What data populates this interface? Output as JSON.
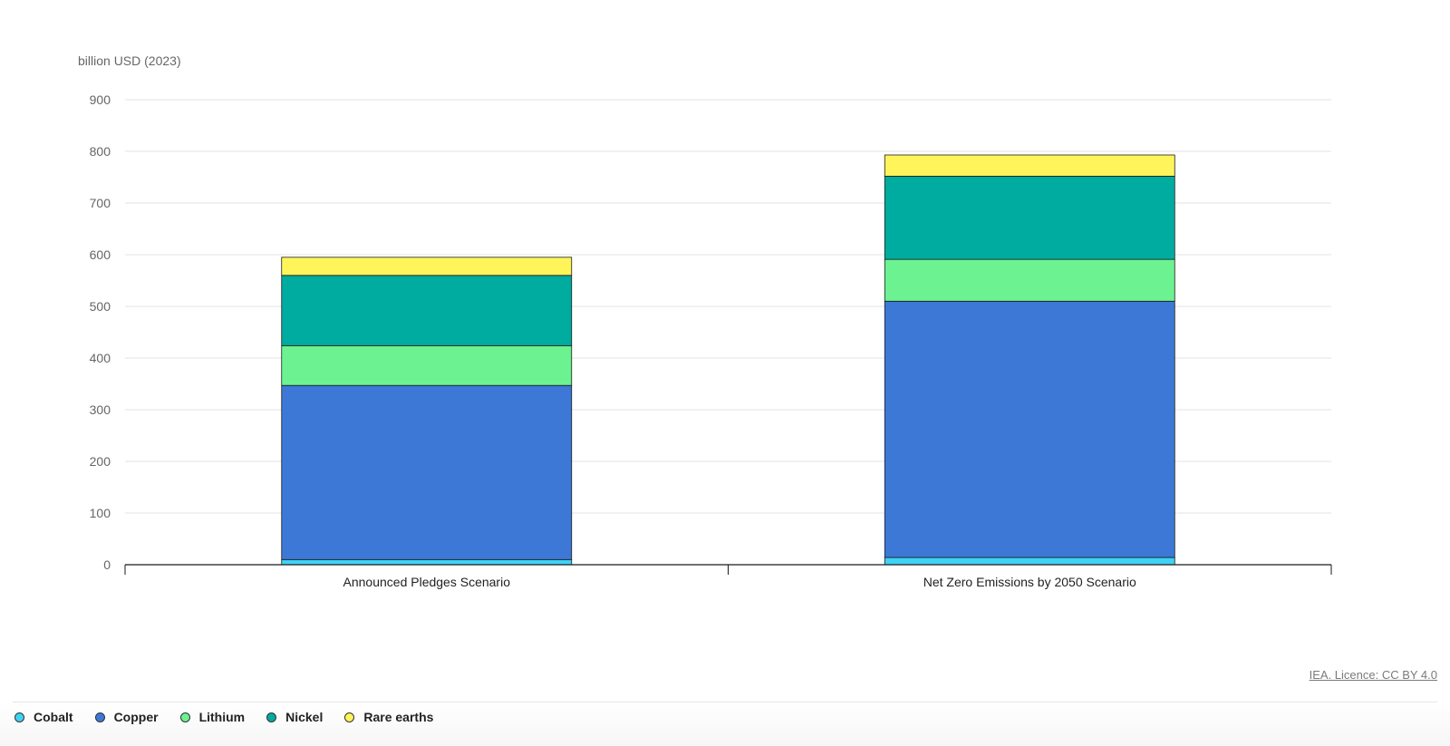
{
  "chart_data": {
    "type": "bar",
    "stacked": true,
    "ylabel": "billion USD (2023)",
    "ylim": [
      0,
      900
    ],
    "yticks": [
      0,
      100,
      200,
      300,
      400,
      500,
      600,
      700,
      800,
      900
    ],
    "categories": [
      "Announced Pledges Scenario",
      "Net Zero Emissions by 2050 Scenario"
    ],
    "series": [
      {
        "name": "Cobalt",
        "color": "#3fd2f5",
        "values": [
          10,
          14
        ]
      },
      {
        "name": "Copper",
        "color": "#3d78d6",
        "values": [
          337,
          496
        ]
      },
      {
        "name": "Lithium",
        "color": "#6cf291",
        "values": [
          77,
          81
        ]
      },
      {
        "name": "Nickel",
        "color": "#00ac9f",
        "values": [
          136,
          161
        ]
      },
      {
        "name": "Rare earths",
        "color": "#fff55a",
        "values": [
          35,
          41
        ]
      }
    ],
    "grid": true,
    "legend_position": "bottom-left"
  },
  "footer": {
    "source": "IEA. Licence: CC BY 4.0"
  }
}
